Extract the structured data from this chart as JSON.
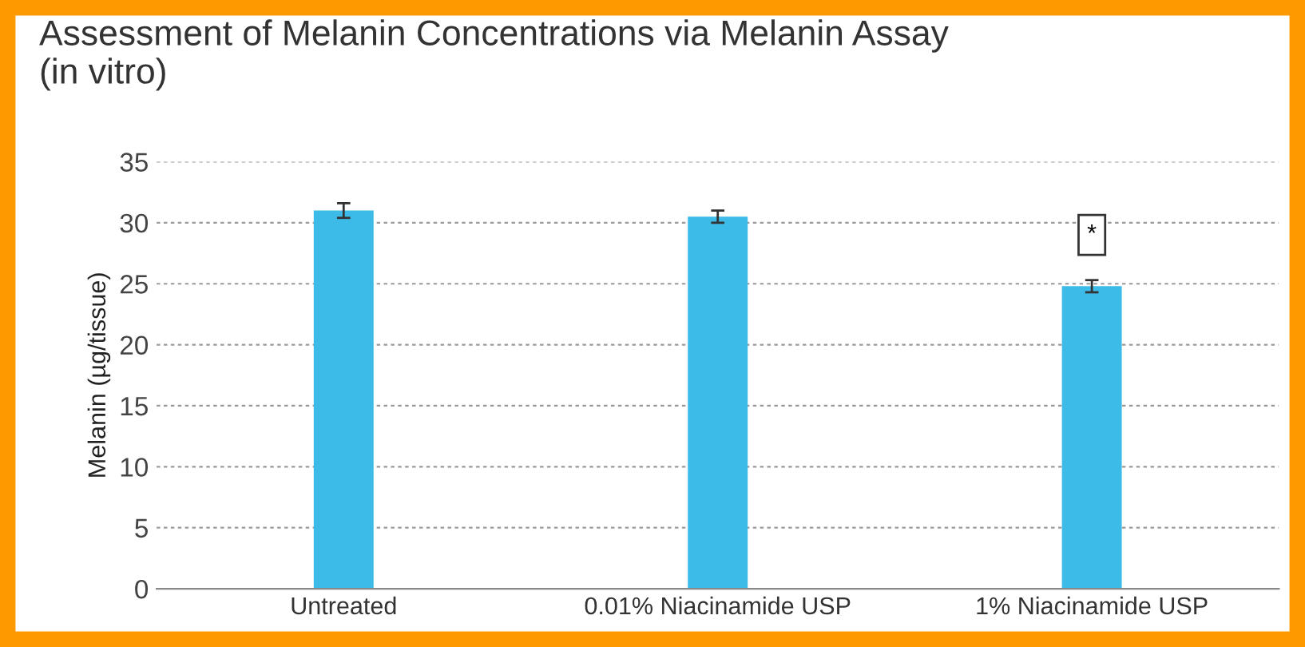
{
  "chart_data": {
    "type": "bar",
    "title": "Assessment of Melanin Concentrations via Melanin Assay\n(in vitro)",
    "ylabel": "Melanin (µg/tissue)",
    "categories": [
      "Untreated",
      "0.01% Niacinamide USP",
      "1% Niacinamide USP"
    ],
    "values": [
      31.0,
      30.5,
      24.8
    ],
    "errors": [
      0.6,
      0.5,
      0.5
    ],
    "color": "#3dbbe8",
    "ylim": [
      0,
      35
    ],
    "yticks": [
      0,
      5,
      10,
      15,
      20,
      25,
      30,
      35
    ],
    "grid": "y",
    "annotations": [
      {
        "text": "*",
        "x": "1% Niacinamide USP",
        "y": 29
      }
    ]
  }
}
